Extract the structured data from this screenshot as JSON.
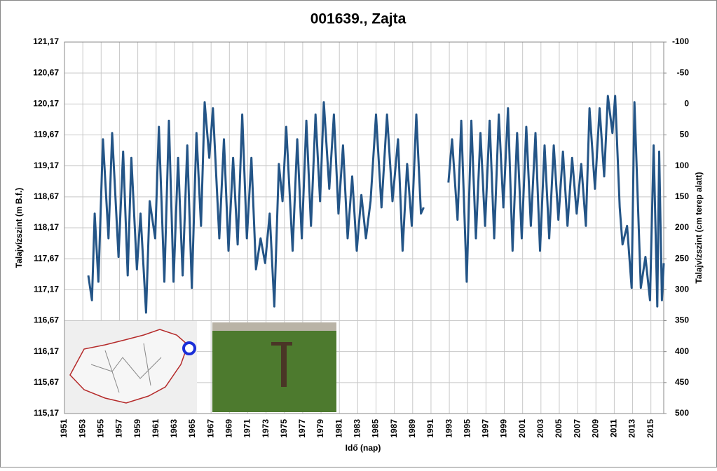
{
  "chart_data": {
    "type": "line",
    "title": "001639., Zajta",
    "x_label": "Idő (nap)",
    "y_label": "Talajvízszint (m B.f.)",
    "y2_label": "Talajvízszint (cm terep alatt)",
    "color": "#245587",
    "grid": true,
    "xlim": [
      1951,
      2016.4
    ],
    "xticks": [
      1951,
      1953,
      1955,
      1957,
      1959,
      1961,
      1963,
      1965,
      1967,
      1969,
      1971,
      1973,
      1975,
      1977,
      1979,
      1981,
      1983,
      1985,
      1987,
      1989,
      1991,
      1993,
      1995,
      1997,
      1999,
      2001,
      2003,
      2005,
      2007,
      2009,
      2011,
      2013,
      2015
    ],
    "ylim": [
      115.17,
      121.17
    ],
    "yticks": [
      {
        "value": 115.17,
        "label": "115,17"
      },
      {
        "value": 115.67,
        "label": "115,67"
      },
      {
        "value": 116.17,
        "label": "116,17"
      },
      {
        "value": 116.67,
        "label": "116,67"
      },
      {
        "value": 117.17,
        "label": "117,17"
      },
      {
        "value": 117.67,
        "label": "117,67"
      },
      {
        "value": 118.17,
        "label": "118,17"
      },
      {
        "value": 118.67,
        "label": "118,67"
      },
      {
        "value": 119.17,
        "label": "119,17"
      },
      {
        "value": 119.67,
        "label": "119,67"
      },
      {
        "value": 120.17,
        "label": "120,17"
      },
      {
        "value": 120.67,
        "label": "120,67"
      },
      {
        "value": 121.17,
        "label": "121,17"
      }
    ],
    "y2lim": [
      500,
      -100
    ],
    "y2ticks": [
      -100,
      -50,
      0,
      50,
      100,
      150,
      200,
      250,
      300,
      350,
      400,
      450,
      500
    ],
    "x": [
      1953.6,
      1954.0,
      1954.3,
      1954.7,
      1955.2,
      1955.8,
      1956.2,
      1956.9,
      1957.4,
      1957.9,
      1958.3,
      1958.9,
      1959.3,
      1959.9,
      1960.3,
      1960.9,
      1961.3,
      1961.9,
      1962.4,
      1962.9,
      1963.4,
      1963.9,
      1964.4,
      1964.9,
      1965.4,
      1965.9,
      1966.3,
      1966.8,
      1967.2,
      1967.9,
      1968.4,
      1968.9,
      1969.4,
      1969.9,
      1970.4,
      1970.9,
      1971.4,
      1971.9,
      1972.4,
      1972.9,
      1973.4,
      1973.9,
      1974.4,
      1974.8,
      1975.2,
      1975.9,
      1976.4,
      1976.9,
      1977.4,
      1977.9,
      1978.4,
      1978.9,
      1979.3,
      1979.9,
      1980.4,
      1980.9,
      1981.4,
      1981.9,
      1982.4,
      1982.9,
      1983.4,
      1983.9,
      1984.4,
      1985.0,
      1985.6,
      1986.2,
      1986.8,
      1987.4,
      1987.9,
      1988.4,
      1988.9,
      1989.4,
      1989.9,
      1990.2,
      1991.5,
      1992.9,
      1993.3,
      1993.9,
      1994.3,
      1994.9,
      1995.4,
      1995.9,
      1996.4,
      1996.9,
      1997.4,
      1997.9,
      1998.4,
      1998.9,
      1999.4,
      1999.9,
      2000.4,
      2000.9,
      2001.4,
      2001.9,
      2002.4,
      2002.9,
      2003.4,
      2003.9,
      2004.4,
      2004.9,
      2005.4,
      2005.9,
      2006.4,
      2006.9,
      2007.4,
      2007.9,
      2008.3,
      2008.9,
      2009.4,
      2009.9,
      2010.3,
      2010.8,
      2011.1,
      2011.6,
      2011.9,
      2012.4,
      2012.9,
      2013.2,
      2013.9,
      2014.4,
      2014.9,
      2015.3,
      2015.7,
      2015.9,
      2016.2,
      2016.4
    ],
    "values": [
      117.4,
      117.0,
      118.4,
      117.3,
      119.6,
      118.0,
      119.7,
      117.7,
      119.4,
      117.4,
      119.3,
      117.5,
      118.4,
      116.8,
      118.6,
      118.0,
      119.8,
      117.3,
      119.9,
      117.3,
      119.3,
      117.4,
      119.5,
      117.2,
      119.7,
      118.2,
      120.2,
      119.3,
      120.1,
      118.0,
      119.6,
      117.8,
      119.3,
      117.9,
      120.0,
      118.0,
      119.3,
      117.5,
      118.0,
      117.6,
      118.4,
      116.9,
      119.2,
      118.6,
      119.8,
      117.8,
      119.6,
      118.0,
      119.9,
      118.2,
      120.0,
      118.6,
      120.2,
      118.8,
      120.0,
      118.4,
      119.5,
      118.0,
      119.0,
      117.8,
      118.7,
      118.0,
      118.6,
      120.0,
      118.5,
      120.0,
      118.6,
      119.6,
      117.8,
      119.2,
      118.2,
      120.0,
      118.4,
      118.5,
      null,
      118.9,
      119.6,
      118.3,
      119.9,
      117.3,
      119.9,
      118.0,
      119.7,
      118.2,
      119.9,
      118.0,
      120.0,
      118.5,
      120.1,
      117.8,
      119.7,
      118.0,
      119.8,
      118.2,
      119.7,
      117.8,
      119.5,
      118.0,
      119.5,
      118.3,
      119.4,
      118.2,
      119.3,
      118.4,
      119.2,
      118.2,
      120.1,
      118.8,
      120.1,
      119.0,
      120.3,
      119.7,
      120.3,
      118.5,
      117.9,
      118.2,
      117.2,
      120.2,
      117.2,
      117.7,
      117.0,
      119.5,
      116.9,
      119.4,
      117.0,
      117.6
    ]
  }
}
